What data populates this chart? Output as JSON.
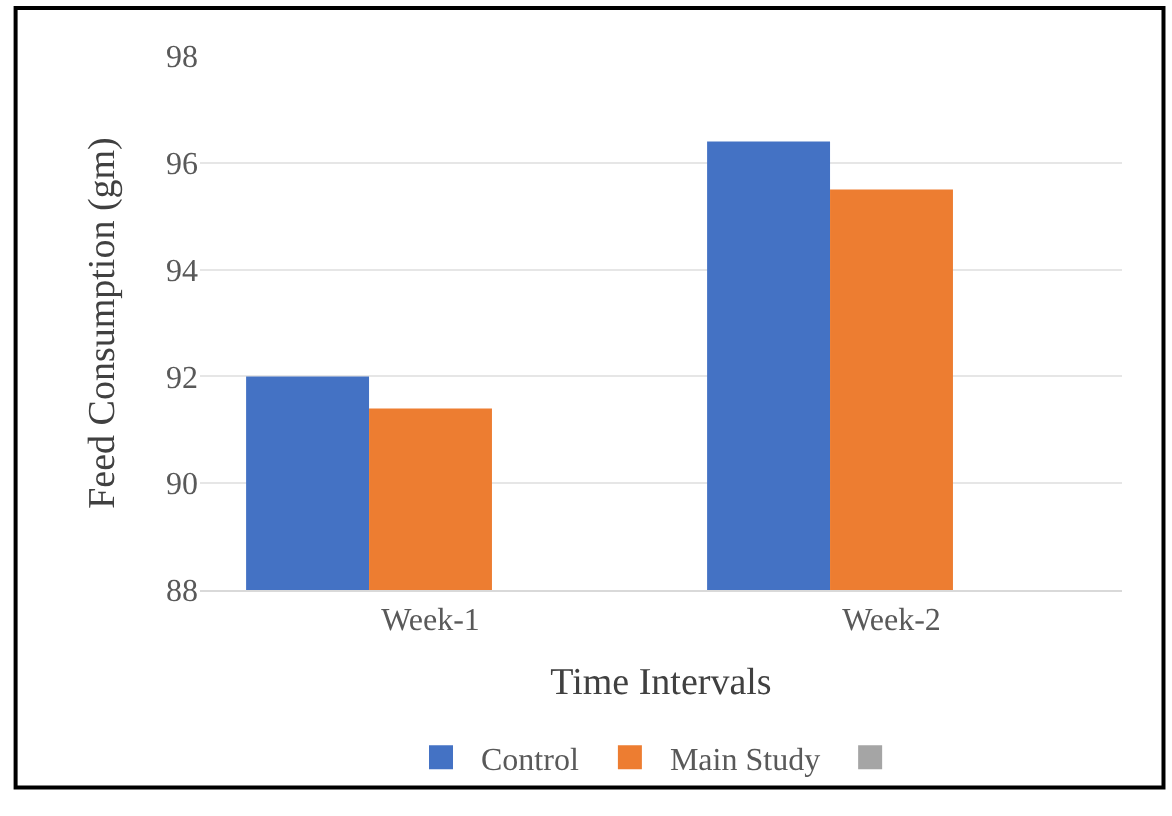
{
  "chart_data": {
    "type": "bar",
    "xlabel": "Time Intervals",
    "ylabel": "Feed Consumption (gm)",
    "categories": [
      "Week-1",
      "Week-2"
    ],
    "series": [
      {
        "name": "Control",
        "color": "#4472c4",
        "values": [
          92.0,
          96.4
        ]
      },
      {
        "name": "Main Study",
        "color": "#ed7d31",
        "values": [
          91.4,
          95.5
        ]
      },
      {
        "color": "#a5a5a5",
        "values": [
          null,
          null
        ]
      }
    ],
    "ylim": [
      88,
      98
    ],
    "yticks": [
      88,
      90,
      92,
      94,
      96,
      98
    ],
    "grid": "y",
    "legend": "bottom"
  }
}
